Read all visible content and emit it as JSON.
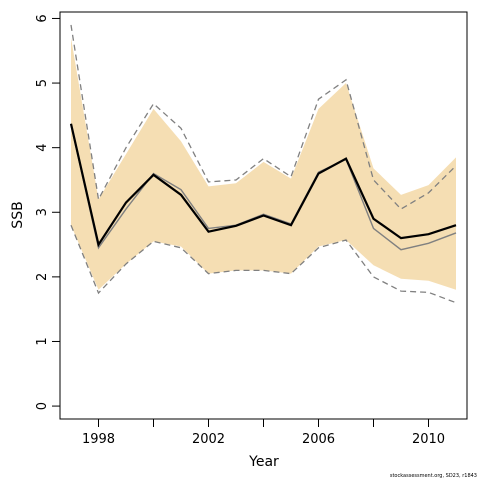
{
  "chart_data": {
    "type": "line",
    "xlabel": "Year",
    "ylabel": "SSB",
    "xlim": [
      1996.6,
      2011.4
    ],
    "ylim": [
      -0.2,
      6.1
    ],
    "x_ticks": [
      1998,
      2002,
      2006,
      2010
    ],
    "x_minor_ticks": [
      2000,
      2004,
      2008
    ],
    "y_ticks": [
      0,
      1,
      2,
      3,
      4,
      5,
      6
    ],
    "grid": false,
    "legend": "none",
    "x": [
      1997,
      1998,
      1999,
      2000,
      2001,
      2002,
      2003,
      2004,
      2005,
      2006,
      2007,
      2008,
      2009,
      2010,
      2011
    ],
    "band": {
      "upper": [
        5.7,
        3.2,
        3.9,
        4.6,
        4.1,
        3.4,
        3.45,
        3.78,
        3.52,
        4.6,
        5.0,
        3.68,
        3.27,
        3.42,
        3.85
      ],
      "lower": [
        2.8,
        1.8,
        2.2,
        2.55,
        2.47,
        2.05,
        2.1,
        2.1,
        2.05,
        2.47,
        2.57,
        2.18,
        1.97,
        1.94,
        1.8
      ],
      "color": "#f5deb3"
    },
    "series": [
      {
        "style": "dashed-upper",
        "color": "#808080",
        "values": [
          5.9,
          3.2,
          4.0,
          4.68,
          4.3,
          3.47,
          3.5,
          3.83,
          3.55,
          4.75,
          5.05,
          3.5,
          3.05,
          3.3,
          3.72
        ]
      },
      {
        "style": "dashed-lower",
        "color": "#808080",
        "values": [
          2.8,
          1.75,
          2.2,
          2.55,
          2.45,
          2.05,
          2.1,
          2.1,
          2.05,
          2.45,
          2.57,
          2.0,
          1.78,
          1.76,
          1.6
        ]
      },
      {
        "style": "gray-solid",
        "color": "#808080",
        "values": [
          4.35,
          2.45,
          3.05,
          3.6,
          3.35,
          2.75,
          2.8,
          2.97,
          2.82,
          3.62,
          3.82,
          2.75,
          2.42,
          2.52,
          2.68
        ]
      },
      {
        "style": "black-solid",
        "color": "#000000",
        "values": [
          4.37,
          2.5,
          3.15,
          3.58,
          3.27,
          2.7,
          2.79,
          2.95,
          2.8,
          3.6,
          3.83,
          2.9,
          2.6,
          2.66,
          2.8
        ]
      }
    ],
    "credit": "stockassessment.org, SD23, r1843"
  }
}
